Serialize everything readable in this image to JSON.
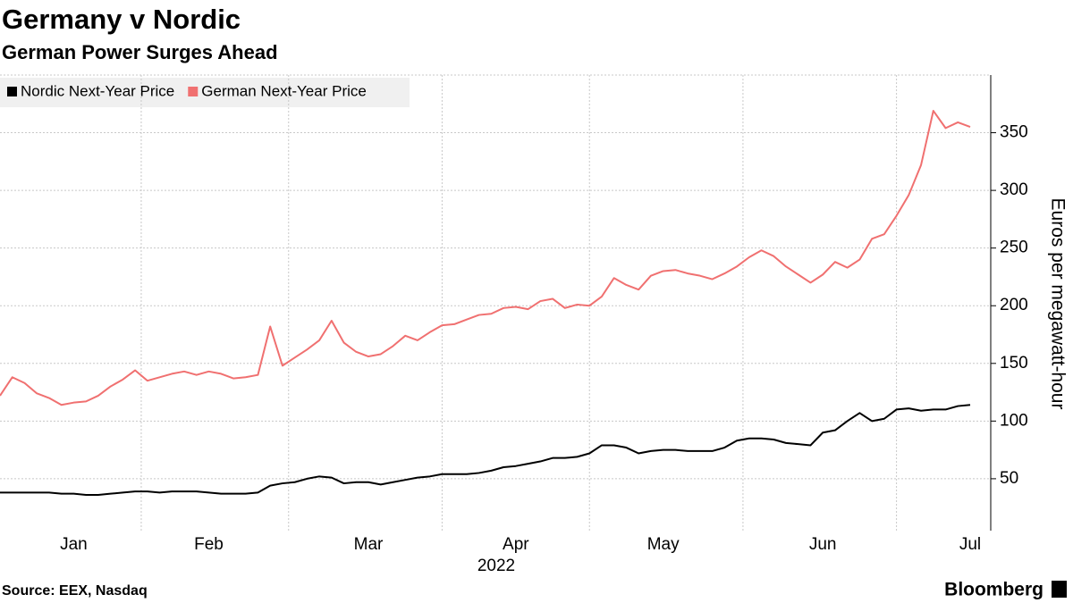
{
  "chart_data": {
    "type": "line",
    "title": "Germany v Nordic",
    "subtitle": "German Power Surges Ahead",
    "y_label": "Euros per megawatt-hour",
    "x_label": "2022",
    "source": "Source: EEX, Nasdaq",
    "brand": "Bloomberg",
    "categories": [
      null,
      null,
      null,
      null,
      null,
      null,
      "Jan",
      null,
      null,
      null,
      null,
      null,
      null,
      null,
      null,
      null,
      null,
      "Feb",
      null,
      null,
      null,
      null,
      null,
      null,
      null,
      null,
      null,
      null,
      null,
      null,
      "Mar",
      null,
      null,
      null,
      null,
      null,
      null,
      null,
      null,
      null,
      null,
      null,
      "Apr",
      null,
      null,
      null,
      null,
      null,
      null,
      null,
      null,
      null,
      null,
      null,
      "May",
      null,
      null,
      null,
      null,
      null,
      null,
      null,
      null,
      null,
      null,
      null,
      null,
      "Jun",
      null,
      null,
      null,
      null,
      null,
      null,
      null,
      null,
      null,
      null,
      null,
      "Jul"
    ],
    "series": [
      {
        "name": "Nordic Next-Year Price",
        "color": "#000000",
        "values": [
          38,
          38,
          38,
          38,
          38,
          37,
          37,
          36,
          36,
          37,
          38,
          39,
          39,
          38,
          39,
          39,
          39,
          38,
          37,
          37,
          37,
          38,
          44,
          46,
          47,
          50,
          52,
          51,
          46,
          47,
          47,
          45,
          47,
          49,
          51,
          52,
          54,
          54,
          54,
          55,
          57,
          60,
          61,
          63,
          65,
          68,
          68,
          69,
          72,
          79,
          79,
          77,
          72,
          74,
          75,
          75,
          74,
          74,
          74,
          77,
          83,
          85,
          85,
          84,
          81,
          80,
          79,
          90,
          92,
          100,
          107,
          100,
          102,
          110,
          111,
          109,
          110,
          110,
          113,
          114
        ]
      },
      {
        "name": "German Next-Year Price",
        "color": "#f07070",
        "values": [
          122,
          138,
          133,
          124,
          120,
          114,
          116,
          117,
          122,
          130,
          136,
          144,
          135,
          138,
          141,
          143,
          140,
          143,
          141,
          137,
          138,
          140,
          182,
          148,
          155,
          162,
          170,
          187,
          168,
          160,
          156,
          158,
          165,
          174,
          170,
          177,
          183,
          184,
          188,
          192,
          193,
          198,
          199,
          197,
          204,
          206,
          198,
          201,
          200,
          208,
          224,
          218,
          214,
          226,
          230,
          231,
          228,
          226,
          223,
          228,
          234,
          242,
          248,
          243,
          234,
          227,
          220,
          227,
          238,
          233,
          240,
          258,
          262,
          278,
          296,
          322,
          369,
          354,
          359,
          355
        ]
      }
    ],
    "ylim": [
      5,
      400
    ],
    "yticks": [
      50,
      100,
      150,
      200,
      250,
      300,
      350
    ],
    "grid": true,
    "legend": "top-left"
  }
}
